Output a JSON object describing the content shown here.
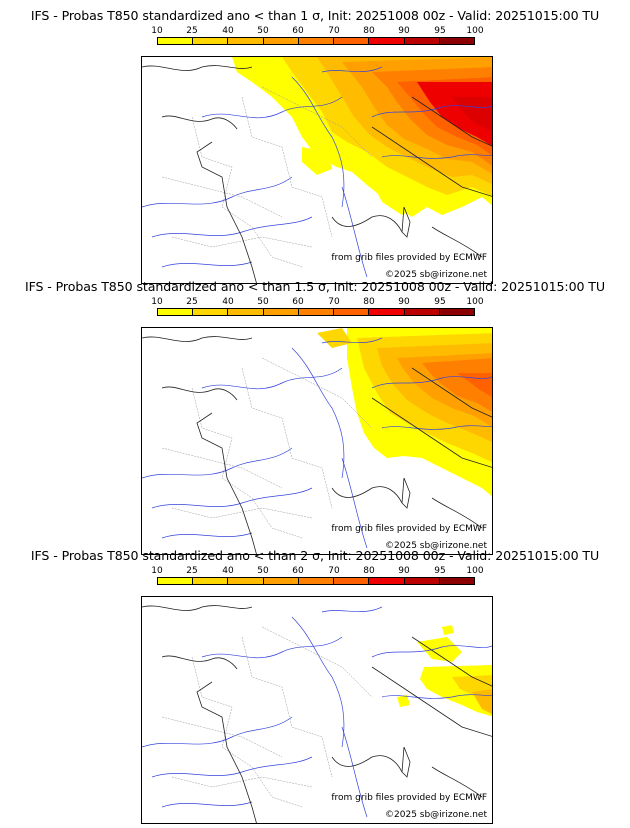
{
  "colorbar": {
    "labels": [
      "10",
      "25",
      "40",
      "50",
      "60",
      "70",
      "80",
      "90",
      "95",
      "100"
    ],
    "colors": [
      "#ffff00",
      "#ffd700",
      "#ffbb00",
      "#ffa000",
      "#ff8000",
      "#ff6000",
      "#ee0000",
      "#bb0000",
      "#8b0000",
      "#560000"
    ]
  },
  "panels": [
    {
      "title": "IFS - Probas T850  standardized ano < than 1 σ, Init: 20251008 00z - Valid: 20251015:00 TU",
      "credit_source": "from grib files provided by ECMWF",
      "credit_copyright": "©2025 sb@irizone.net"
    },
    {
      "title": "IFS - Probas T850  standardized ano < than 1.5 σ, Init: 20251008 00z - Valid: 20251015:00 TU",
      "credit_source": "from grib files provided by ECMWF",
      "credit_copyright": "©2025 sb@irizone.net"
    },
    {
      "title": "IFS - Probas T850  standardized ano < than 2 σ, Init: 20251008 00z - Valid: 20251015:00 TU",
      "credit_source": "from grib files provided by ECMWF",
      "credit_copyright": "©2025 sb@irizone.net"
    }
  ]
}
